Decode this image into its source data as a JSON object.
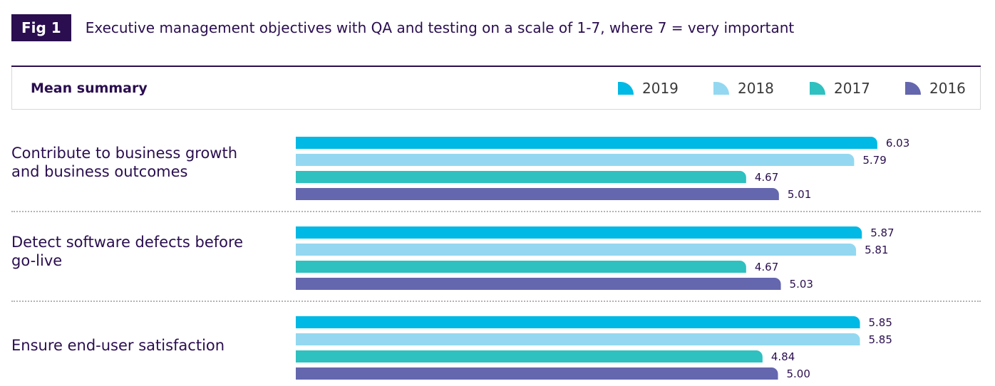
{
  "figure": {
    "badge": "Fig 1",
    "title": "Executive management objectives with QA and testing on a scale of 1-7, where 7 = very important"
  },
  "legend": {
    "title": "Mean summary",
    "items": [
      {
        "label": "2019",
        "color": "#00b9e4"
      },
      {
        "label": "2018",
        "color": "#93d8f0"
      },
      {
        "label": "2017",
        "color": "#2fc0c0"
      },
      {
        "label": "2016",
        "color": "#6466ae"
      }
    ]
  },
  "chart_data": {
    "type": "bar",
    "orientation": "horizontal",
    "categories": [
      "Contribute to business growth and business outcomes",
      "Detect software defects before go-live",
      "Ensure end-user satisfaction"
    ],
    "series": [
      {
        "name": "2019",
        "color": "#00b9e4",
        "values": [
          6.03,
          5.87,
          5.85
        ],
        "labels": [
          "6.03",
          "5.87",
          "5.85"
        ]
      },
      {
        "name": "2018",
        "color": "#93d8f0",
        "values": [
          5.79,
          5.81,
          5.85
        ],
        "labels": [
          "5.79",
          "5.81",
          "5.85"
        ]
      },
      {
        "name": "2017",
        "color": "#2fc0c0",
        "values": [
          4.67,
          4.67,
          4.84
        ],
        "labels": [
          "4.67",
          "4.67",
          "4.84"
        ]
      },
      {
        "name": "2016",
        "color": "#6466ae",
        "values": [
          5.01,
          5.03,
          5.0
        ],
        "labels": [
          "5.01",
          "5.03",
          "5.00"
        ]
      }
    ],
    "title": "Executive management objectives with QA and testing on a scale of 1-7, where 7 = very important",
    "xlabel": "",
    "ylabel": "",
    "xlim": [
      0,
      7
    ],
    "grid": false,
    "legend_position": "top-right"
  }
}
